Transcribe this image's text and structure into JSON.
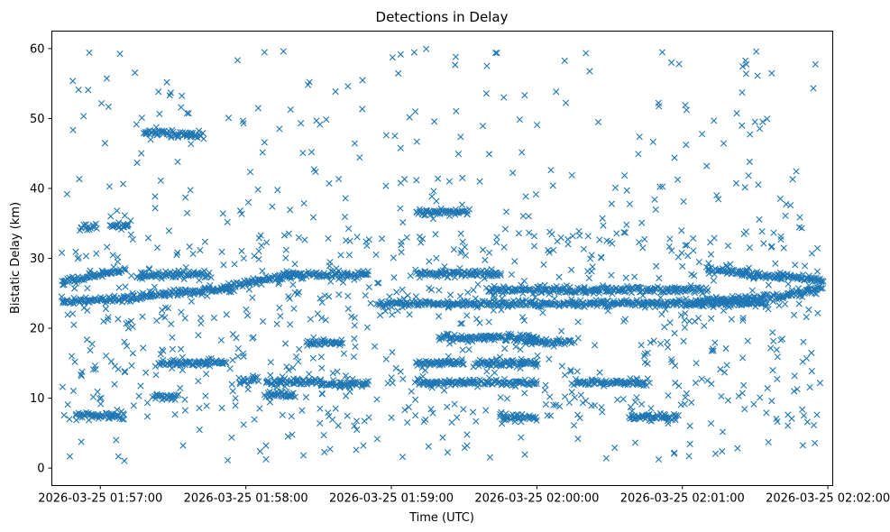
{
  "chart_data": {
    "type": "scatter",
    "title": "Detections in Delay",
    "xlabel": "Time (UTC)",
    "ylabel": "Bistatic Delay (km)",
    "marker": "x",
    "color": "#1f77b4",
    "x_unit": "seconds since 2026-03-25 01:56:40 UTC",
    "xlim": [
      0,
      322
    ],
    "ylim": [
      -2.5,
      62.5
    ],
    "x_ticks": [
      {
        "value": 20,
        "label": "2026-03-25 01:57:00"
      },
      {
        "value": 80,
        "label": "2026-03-25 01:58:00"
      },
      {
        "value": 140,
        "label": "2026-03-25 01:59:00"
      },
      {
        "value": 200,
        "label": "2026-03-25 02:00:00"
      },
      {
        "value": 260,
        "label": "2026-03-25 02:01:00"
      },
      {
        "value": 320,
        "label": "2026-03-25 02:02:00"
      }
    ],
    "y_ticks": [
      {
        "value": 0,
        "label": "0"
      },
      {
        "value": 10,
        "label": "10"
      },
      {
        "value": 20,
        "label": "20"
      },
      {
        "value": 30,
        "label": "30"
      },
      {
        "value": 40,
        "label": "40"
      },
      {
        "value": 50,
        "label": "50"
      },
      {
        "value": 60,
        "label": "60"
      }
    ],
    "grid": false,
    "tracks": [
      {
        "x0": 4,
        "x1": 30,
        "y0": 23.8,
        "y1": 24.2
      },
      {
        "x0": 30,
        "x1": 55,
        "y0": 24.2,
        "y1": 25.2
      },
      {
        "x0": 55,
        "x1": 75,
        "y0": 25.2,
        "y1": 25.5
      },
      {
        "x0": 70,
        "x1": 100,
        "y0": 25.8,
        "y1": 27.8
      },
      {
        "x0": 95,
        "x1": 130,
        "y0": 27.6,
        "y1": 27.6
      },
      {
        "x0": 135,
        "x1": 295,
        "y0": 23.5,
        "y1": 23.5
      },
      {
        "x0": 150,
        "x1": 185,
        "y0": 27.8,
        "y1": 27.8
      },
      {
        "x0": 180,
        "x1": 270,
        "y0": 25.5,
        "y1": 25.5
      },
      {
        "x0": 265,
        "x1": 300,
        "y0": 23.8,
        "y1": 24.5
      },
      {
        "x0": 300,
        "x1": 318,
        "y0": 24.5,
        "y1": 25.8
      },
      {
        "x0": 4,
        "x1": 30,
        "y0": 26.5,
        "y1": 28.5
      },
      {
        "x0": 35,
        "x1": 65,
        "y0": 27.5,
        "y1": 27.8
      },
      {
        "x0": 270,
        "x1": 300,
        "y0": 28.5,
        "y1": 27.2
      },
      {
        "x0": 300,
        "x1": 318,
        "y0": 27.5,
        "y1": 26.8
      },
      {
        "x0": 44,
        "x1": 72,
        "y0": 15.0,
        "y1": 15.0
      },
      {
        "x0": 150,
        "x1": 170,
        "y0": 15.0,
        "y1": 15.0
      },
      {
        "x0": 175,
        "x1": 200,
        "y0": 15.0,
        "y1": 15.0
      },
      {
        "x0": 78,
        "x1": 85,
        "y0": 12.5,
        "y1": 12.5
      },
      {
        "x0": 88,
        "x1": 110,
        "y0": 12.2,
        "y1": 12.5
      },
      {
        "x0": 110,
        "x1": 130,
        "y0": 12.0,
        "y1": 12.0
      },
      {
        "x0": 150,
        "x1": 175,
        "y0": 12.2,
        "y1": 12.2
      },
      {
        "x0": 175,
        "x1": 200,
        "y0": 12.2,
        "y1": 12.2
      },
      {
        "x0": 215,
        "x1": 245,
        "y0": 12.2,
        "y1": 12.2
      },
      {
        "x0": 160,
        "x1": 200,
        "y0": 18.7,
        "y1": 18.7
      },
      {
        "x0": 195,
        "x1": 215,
        "y0": 18.0,
        "y1": 18.0
      },
      {
        "x0": 105,
        "x1": 120,
        "y0": 18.0,
        "y1": 18.0
      },
      {
        "x0": 150,
        "x1": 172,
        "y0": 36.6,
        "y1": 36.6
      },
      {
        "x0": 38,
        "x1": 62,
        "y0": 48.0,
        "y1": 47.6
      },
      {
        "x0": 24,
        "x1": 32,
        "y0": 34.6,
        "y1": 34.6
      },
      {
        "x0": 12,
        "x1": 18,
        "y0": 34.4,
        "y1": 34.4
      },
      {
        "x0": 42,
        "x1": 52,
        "y0": 10.2,
        "y1": 10.2
      },
      {
        "x0": 88,
        "x1": 100,
        "y0": 10.5,
        "y1": 10.5
      },
      {
        "x0": 185,
        "x1": 200,
        "y0": 7.3,
        "y1": 7.3
      },
      {
        "x0": 238,
        "x1": 258,
        "y0": 7.3,
        "y1": 7.3
      },
      {
        "x0": 10,
        "x1": 30,
        "y0": 7.5,
        "y1": 7.5
      }
    ]
  }
}
